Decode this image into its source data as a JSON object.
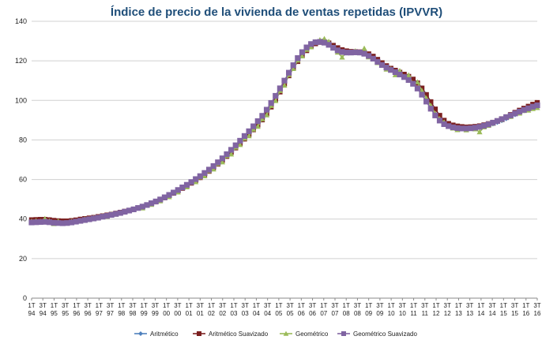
{
  "chart_data": {
    "type": "line",
    "title": "Índice de precio de la vivienda de ventas repetidas (IPVVR)",
    "xlabel": "",
    "ylabel": "",
    "ylim": [
      0,
      140
    ],
    "yticks": [
      0,
      20,
      40,
      60,
      80,
      100,
      120,
      140
    ],
    "grid": true,
    "legend_position": "bottom",
    "x_tick_labels": [
      {
        "q": "1T",
        "y": "94"
      },
      {
        "q": "3T",
        "y": "94"
      },
      {
        "q": "1T",
        "y": "95"
      },
      {
        "q": "3T",
        "y": "95"
      },
      {
        "q": "1T",
        "y": "96"
      },
      {
        "q": "3T",
        "y": "96"
      },
      {
        "q": "1T",
        "y": "97"
      },
      {
        "q": "3T",
        "y": "97"
      },
      {
        "q": "1T",
        "y": "98"
      },
      {
        "q": "3T",
        "y": "98"
      },
      {
        "q": "1T",
        "y": "99"
      },
      {
        "q": "3T",
        "y": "99"
      },
      {
        "q": "1T",
        "y": "00"
      },
      {
        "q": "3T",
        "y": "00"
      },
      {
        "q": "1T",
        "y": "01"
      },
      {
        "q": "3T",
        "y": "01"
      },
      {
        "q": "1T",
        "y": "02"
      },
      {
        "q": "3T",
        "y": "02"
      },
      {
        "q": "1T",
        "y": "03"
      },
      {
        "q": "3T",
        "y": "03"
      },
      {
        "q": "1T",
        "y": "04"
      },
      {
        "q": "3T",
        "y": "04"
      },
      {
        "q": "1T",
        "y": "05"
      },
      {
        "q": "3T",
        "y": "05"
      },
      {
        "q": "1T",
        "y": "06"
      },
      {
        "q": "3T",
        "y": "06"
      },
      {
        "q": "1T",
        "y": "07"
      },
      {
        "q": "3T",
        "y": "07"
      },
      {
        "q": "1T",
        "y": "08"
      },
      {
        "q": "3T",
        "y": "08"
      },
      {
        "q": "1T",
        "y": "09"
      },
      {
        "q": "3T",
        "y": "09"
      },
      {
        "q": "1T",
        "y": "10"
      },
      {
        "q": "3T",
        "y": "10"
      },
      {
        "q": "1T",
        "y": "11"
      },
      {
        "q": "3T",
        "y": "11"
      },
      {
        "q": "1T",
        "y": "12"
      },
      {
        "q": "3T",
        "y": "12"
      },
      {
        "q": "1T",
        "y": "13"
      },
      {
        "q": "3T",
        "y": "13"
      },
      {
        "q": "1T",
        "y": "14"
      },
      {
        "q": "3T",
        "y": "14"
      },
      {
        "q": "1T",
        "y": "15"
      },
      {
        "q": "3T",
        "y": "15"
      },
      {
        "q": "1T",
        "y": "16"
      },
      {
        "q": "3T",
        "y": "16"
      }
    ],
    "series": [
      {
        "name": "Aritmético",
        "color": "#4f81bd",
        "marker": "diamond",
        "values": [
          39.5,
          39.6,
          39.7,
          39.9,
          39.8,
          39.4,
          39.1,
          38.9,
          38.9,
          39.2,
          39.5,
          39.9,
          40.2,
          40.5,
          40.8,
          41.2,
          41.6,
          42.0,
          42.4,
          42.8,
          43.3,
          43.8,
          44.3,
          44.9,
          45.4,
          46.1,
          46.9,
          47.7,
          48.6,
          49.6,
          50.6,
          51.7,
          52.9,
          54.2,
          55.5,
          56.8,
          58.1,
          59.4,
          60.8,
          62.3,
          64.1,
          65.8,
          67.7,
          69.6,
          71.6,
          73.7,
          75.9,
          78.1,
          80.3,
          82.7,
          85.0,
          87.5,
          90.0,
          93.2,
          96.6,
          100.3,
          104.2,
          108.3,
          112.5,
          116.3,
          119.7,
          122.7,
          125.3,
          127.4,
          128.9,
          129.6,
          129.7,
          129.1,
          127.8,
          126.6,
          125.6,
          125.0,
          124.7,
          124.6,
          124.5,
          124.3,
          123.6,
          122.4,
          120.8,
          119.0,
          117.4,
          116.2,
          115.2,
          114.3,
          113.3,
          112.2,
          110.8,
          109.0,
          106.4,
          103.1,
          99.4,
          95.6,
          92.4,
          89.8,
          88.2,
          87.4,
          86.9,
          86.5,
          86.2,
          86.2,
          86.3,
          86.5,
          86.9,
          87.4,
          88.0,
          88.8,
          89.7,
          90.7,
          91.7,
          92.7,
          93.7,
          94.7,
          95.6,
          96.6,
          97.5
        ]
      },
      {
        "name": "Aritmético Suavizado",
        "color": "#7b2020",
        "marker": "square",
        "values": [
          39.6,
          39.7,
          39.8,
          39.8,
          39.6,
          39.3,
          39.1,
          39.0,
          39.0,
          39.2,
          39.5,
          39.9,
          40.2,
          40.5,
          40.8,
          41.2,
          41.6,
          42.0,
          42.4,
          42.9,
          43.4,
          43.9,
          44.4,
          45.0,
          45.6,
          46.3,
          47.0,
          47.8,
          48.7,
          49.7,
          50.8,
          51.9,
          53.1,
          54.3,
          55.6,
          56.9,
          58.2,
          59.6,
          61.0,
          62.5,
          64.2,
          66.0,
          67.8,
          69.7,
          71.7,
          73.8,
          76.0,
          78.2,
          80.5,
          82.8,
          85.2,
          87.6,
          90.2,
          93.3,
          96.7,
          100.4,
          104.3,
          108.4,
          112.5,
          116.3,
          119.7,
          122.7,
          125.2,
          127.3,
          128.7,
          129.4,
          129.5,
          129.0,
          127.8,
          126.6,
          125.6,
          125.0,
          124.7,
          124.6,
          124.5,
          124.2,
          123.5,
          122.3,
          120.7,
          119.0,
          117.5,
          116.2,
          115.2,
          114.2,
          113.2,
          112.1,
          110.7,
          108.8,
          106.2,
          102.9,
          99.3,
          95.6,
          92.4,
          89.9,
          88.3,
          87.5,
          87.0,
          86.7,
          86.5,
          86.6,
          86.8,
          87.1,
          87.6,
          88.2,
          88.9,
          89.7,
          90.7,
          91.7,
          92.8,
          93.9,
          95.0,
          96.0,
          97.0,
          98.0,
          98.9
        ]
      },
      {
        "name": "Geométrico",
        "color": "#9bbb59",
        "marker": "triangle",
        "values": [
          38.9,
          39.1,
          38.8,
          40.2,
          39.0,
          37.6,
          38.9,
          37.7,
          38.0,
          38.8,
          38.9,
          39.3,
          40.0,
          40.1,
          40.6,
          40.7,
          41.5,
          41.2,
          42.5,
          42.4,
          43.3,
          43.5,
          44.2,
          44.6,
          45.6,
          45.5,
          46.8,
          47.3,
          48.8,
          49.1,
          50.8,
          51.2,
          53.2,
          53.6,
          55.8,
          56.2,
          58.4,
          58.8,
          61.2,
          61.8,
          64.4,
          65.2,
          68.0,
          68.8,
          72.0,
          72.8,
          76.3,
          77.6,
          80.8,
          82.0,
          85.4,
          86.8,
          90.6,
          92.6,
          97.3,
          99.8,
          104.9,
          107.6,
          113.0,
          116.0,
          120.3,
          122.4,
          125.7,
          127.0,
          129.6,
          130.6,
          131.2,
          129.8,
          126.4,
          124.3,
          121.8,
          124.2,
          124.0,
          125.0,
          124.0,
          126.3,
          121.9,
          120.8,
          119.0,
          117.8,
          115.7,
          115.9,
          112.9,
          115.0,
          112.0,
          112.8,
          108.4,
          109.3,
          104.9,
          101.1,
          97.4,
          93.4,
          90.7,
          89.0,
          87.0,
          85.9,
          85.1,
          85.7,
          85.0,
          86.0,
          85.5,
          84.0,
          86.5,
          87.3,
          88.3,
          89.4,
          90.1,
          91.6,
          91.8,
          93.4,
          93.5,
          94.8,
          95.0,
          95.8,
          96.3
        ]
      },
      {
        "name": "Geométrico Suavizado",
        "color": "#8064a2",
        "marker": "square",
        "values": [
          38.3,
          38.4,
          38.5,
          38.6,
          38.4,
          38.1,
          38.0,
          37.9,
          38.0,
          38.3,
          38.7,
          39.1,
          39.5,
          39.9,
          40.3,
          40.7,
          41.2,
          41.6,
          42.1,
          42.6,
          43.1,
          43.7,
          44.3,
          44.9,
          45.6,
          46.3,
          47.1,
          48.0,
          48.9,
          49.9,
          51.0,
          52.2,
          53.4,
          54.7,
          56.0,
          57.3,
          58.7,
          60.2,
          61.7,
          63.3,
          65.0,
          66.8,
          68.7,
          70.7,
          72.8,
          75.0,
          77.3,
          79.6,
          82.0,
          84.4,
          86.9,
          89.5,
          92.2,
          95.3,
          98.7,
          102.3,
          106.1,
          110.0,
          114.0,
          117.8,
          121.4,
          124.4,
          126.8,
          128.5,
          129.4,
          129.6,
          129.2,
          128.1,
          126.6,
          125.3,
          124.5,
          124.2,
          124.2,
          124.3,
          124.2,
          123.6,
          122.5,
          121.1,
          119.5,
          117.9,
          116.6,
          115.4,
          114.3,
          113.1,
          111.8,
          110.3,
          108.4,
          106.0,
          102.9,
          99.4,
          95.8,
          92.4,
          89.8,
          88.0,
          87.0,
          86.4,
          86.0,
          85.8,
          85.8,
          85.9,
          86.2,
          86.6,
          87.2,
          87.9,
          88.7,
          89.6,
          90.5,
          91.5,
          92.4,
          93.4,
          94.3,
          95.2,
          96.0,
          96.8,
          97.5
        ]
      }
    ]
  }
}
